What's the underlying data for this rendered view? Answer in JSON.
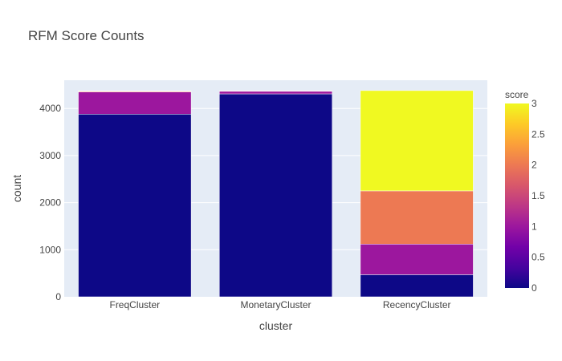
{
  "chart_data": {
    "type": "bar",
    "stacked": true,
    "title": "RFM Score Counts",
    "xlabel": "cluster",
    "ylabel": "count",
    "categories": [
      "FreqCluster",
      "MonetaryCluster",
      "RecencyCluster"
    ],
    "ylim": [
      0,
      4600
    ],
    "yticks": [
      "0",
      "1000",
      "2000",
      "3000",
      "4000"
    ],
    "grid": true,
    "background": "#e5ecf6",
    "bars": [
      {
        "category": "FreqCluster",
        "segments": [
          {
            "score": 0,
            "value": 3880,
            "color": "#0d0887"
          },
          {
            "score": 1,
            "value": 470,
            "color": "#9c179e"
          },
          {
            "score": 2,
            "value": 20,
            "color": "#ed7953"
          },
          {
            "score": 3,
            "value": 2,
            "color": "#f0f921"
          }
        ]
      },
      {
        "category": "MonetaryCluster",
        "segments": [
          {
            "score": 0,
            "value": 4310,
            "color": "#0d0887"
          },
          {
            "score": 1,
            "value": 60,
            "color": "#9c179e"
          },
          {
            "score": 2,
            "value": 2,
            "color": "#ed7953"
          }
        ]
      },
      {
        "category": "RecencyCluster",
        "segments": [
          {
            "score": 0,
            "value": 470,
            "color": "#0d0887"
          },
          {
            "score": 1,
            "value": 650,
            "color": "#9c179e"
          },
          {
            "score": 2,
            "value": 1130,
            "color": "#ed7953"
          },
          {
            "score": 3,
            "value": 2130,
            "color": "#f0f921"
          }
        ]
      }
    ],
    "colorbar": {
      "title": "score",
      "range": [
        0,
        3
      ],
      "ticks": [
        "0",
        "0.5",
        "1",
        "1.5",
        "2",
        "2.5",
        "3"
      ],
      "colorscale": [
        "#0d0887",
        "#46039f",
        "#7201a8",
        "#9c179e",
        "#bd3786",
        "#d8576b",
        "#ed7953",
        "#fb9f3a",
        "#fdca26",
        "#f0f921"
      ]
    }
  }
}
